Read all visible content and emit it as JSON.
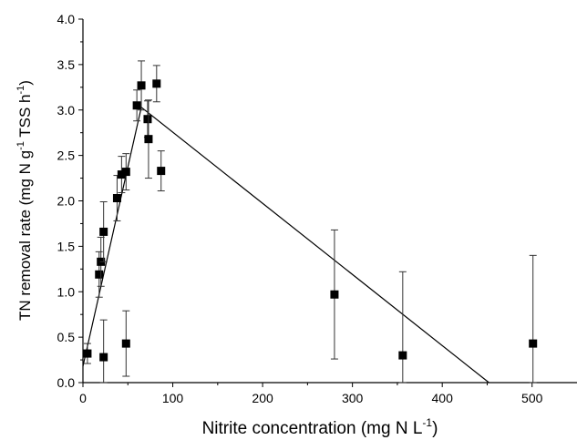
{
  "chart_data": {
    "type": "scatter",
    "title": "",
    "xlabel": "Nitrite concentration (mg N L",
    "xlabel_superscript": "-1",
    "xlabel_suffix": ")",
    "ylabel": "TN removal rate (mg N g",
    "ylabel_superscript_1": "-1",
    "ylabel_middle": " TSS h",
    "ylabel_superscript_2": "-1",
    "ylabel_suffix": ")",
    "xlim": [
      0,
      550
    ],
    "ylim": [
      0,
      4.0
    ],
    "x_ticks": [
      0,
      100,
      200,
      300,
      400,
      500
    ],
    "x_tick_labels": [
      "0",
      "100",
      "200",
      "300",
      "400",
      "500"
    ],
    "y_ticks": [
      0,
      0.5,
      1.0,
      1.5,
      2.0,
      2.5,
      3.0,
      3.5,
      4.0
    ],
    "y_tick_labels": [
      "0.0",
      "0.5",
      "1.0",
      "1.5",
      "2.0",
      "2.5",
      "3.0",
      "3.5",
      "4.0"
    ],
    "grid": false,
    "legend": "none",
    "marker_color": "#000000",
    "series": [
      {
        "points": [
          {
            "x": 5,
            "y": 0.32,
            "err": 0.11
          },
          {
            "x": 18,
            "y": 1.19,
            "err": 0.25
          },
          {
            "x": 20,
            "y": 1.33,
            "err": 0.27
          },
          {
            "x": 23,
            "y": 1.66,
            "err": 0.33
          },
          {
            "x": 23,
            "y": 0.28,
            "err": 0.41
          },
          {
            "x": 38,
            "y": 2.03,
            "err": 0.25
          },
          {
            "x": 43,
            "y": 2.29,
            "err": 0.2
          },
          {
            "x": 48,
            "y": 2.32,
            "err": 0.2
          },
          {
            "x": 48,
            "y": 0.43,
            "err": 0.36
          },
          {
            "x": 60,
            "y": 3.05,
            "err": 0.17
          },
          {
            "x": 65,
            "y": 3.27,
            "err": 0.27
          },
          {
            "x": 72,
            "y": 2.9,
            "err": 0.2
          },
          {
            "x": 73,
            "y": 2.68,
            "err": 0.43
          },
          {
            "x": 82,
            "y": 3.29,
            "err": 0.2
          },
          {
            "x": 87,
            "y": 2.33,
            "err": 0.22
          },
          {
            "x": 280,
            "y": 0.97,
            "err": 0.71
          },
          {
            "x": 356,
            "y": 0.3,
            "err": 0.92
          },
          {
            "x": 501,
            "y": 0.43,
            "err": 0.97
          }
        ]
      }
    ],
    "fit_line": {
      "x": [
        0,
        65,
        452
      ],
      "y": [
        0.18,
        3.03,
        0.0
      ]
    }
  }
}
